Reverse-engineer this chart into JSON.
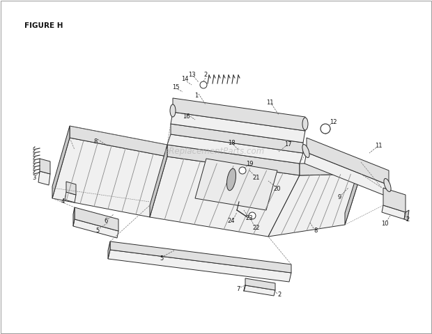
{
  "bg_color": "#ffffff",
  "line_color": "#2a2a2a",
  "shade_light": "#f0f0f0",
  "shade_mid": "#e0e0e0",
  "shade_dark": "#c8c8c8",
  "figure_label": "FIGURE H",
  "watermark": "eReplacementParts.com"
}
